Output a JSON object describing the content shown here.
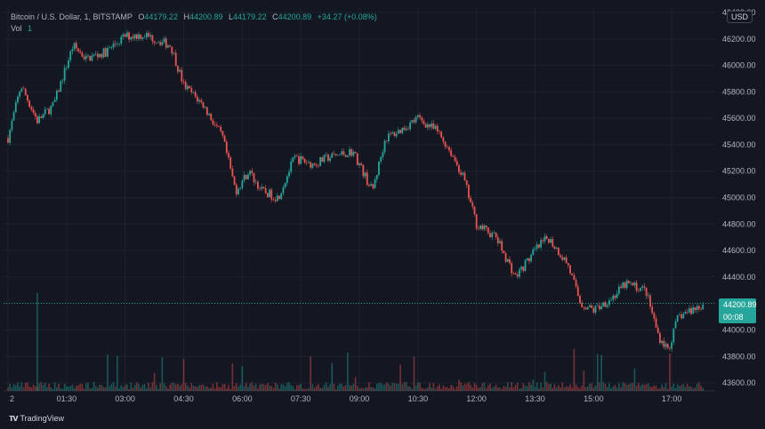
{
  "legend": {
    "symbol": "Bitcoin / U.S. Dollar, 1, BITSTAMP",
    "o_label": "O",
    "o_value": "44179.22",
    "h_label": "H",
    "h_value": "44200.89",
    "l_label": "L",
    "l_value": "44179.22",
    "c_label": "C",
    "c_value": "44200.89",
    "change": "+34.27 (+0.08%)",
    "vol_label": "Vol",
    "vol_value": "1"
  },
  "currency": "USD",
  "last_price": "44200.89",
  "countdown": "00:08",
  "brand": "TradingView",
  "colors": {
    "up": "#26a69a",
    "down": "#ef5350",
    "bg": "#131722",
    "grid": "#1e222d"
  },
  "chart_data": {
    "type": "candlestick",
    "ylim": [
      43540,
      46440
    ],
    "y_ticks": [
      43600,
      43800,
      44000,
      44200,
      44400,
      44600,
      44800,
      45000,
      45200,
      45400,
      45600,
      45800,
      46000,
      46200,
      46400
    ],
    "x_ticks": [
      "2",
      "01:30",
      "03:00",
      "04:30",
      "06:00",
      "07:30",
      "09:00",
      "10:30",
      "12:00",
      "13:30",
      "15:00",
      "17:00"
    ],
    "close_path": [
      [
        "00:00",
        45450
      ],
      [
        "00:20",
        45850
      ],
      [
        "00:45",
        45580
      ],
      [
        "01:10",
        45700
      ],
      [
        "01:40",
        46150
      ],
      [
        "02:00",
        46050
      ],
      [
        "02:30",
        46100
      ],
      [
        "03:00",
        46220
      ],
      [
        "03:30",
        46230
      ],
      [
        "04:10",
        46150
      ],
      [
        "04:30",
        45850
      ],
      [
        "05:00",
        45700
      ],
      [
        "05:30",
        45450
      ],
      [
        "05:50",
        45050
      ],
      [
        "06:10",
        45200
      ],
      [
        "06:30",
        45050
      ],
      [
        "06:55",
        45000
      ],
      [
        "07:20",
        45300
      ],
      [
        "07:50",
        45250
      ],
      [
        "08:10",
        45300
      ],
      [
        "08:50",
        45350
      ],
      [
        "09:20",
        45050
      ],
      [
        "09:40",
        45450
      ],
      [
        "10:00",
        45500
      ],
      [
        "10:30",
        45600
      ],
      [
        "11:00",
        45500
      ],
      [
        "11:20",
        45350
      ],
      [
        "11:40",
        45150
      ],
      [
        "12:00",
        44800
      ],
      [
        "12:30",
        44700
      ],
      [
        "13:00",
        44400
      ],
      [
        "13:30",
        44600
      ],
      [
        "13:50",
        44700
      ],
      [
        "14:20",
        44500
      ],
      [
        "14:40",
        44200
      ],
      [
        "15:00",
        44150
      ],
      [
        "15:30",
        44250
      ],
      [
        "15:50",
        44350
      ],
      [
        "16:20",
        44300
      ],
      [
        "16:40",
        43950
      ],
      [
        "16:55",
        43850
      ],
      [
        "17:10",
        44100
      ],
      [
        "17:30",
        44150
      ],
      [
        "17:50",
        44200
      ]
    ],
    "volume_range": [
      0,
      30
    ],
    "last_price": 44200.89
  }
}
